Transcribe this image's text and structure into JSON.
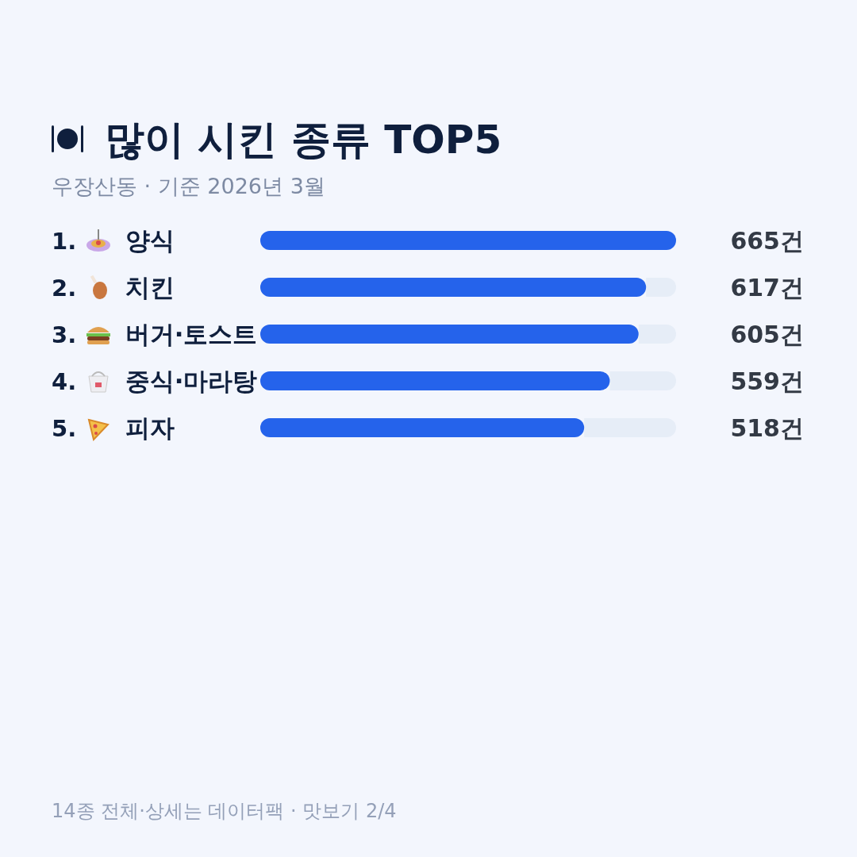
{
  "chart_data": {
    "type": "bar",
    "orientation": "horizontal",
    "title": "많이 시킨 종류 TOP5",
    "subtitle": "우장산동 · 기준 2026년 3월",
    "categories": [
      "1. 양식",
      "2. 치킨",
      "3. 버거·토스트",
      "4. 중식·마라탕",
      "5. 피자"
    ],
    "values": [
      665,
      617,
      605,
      559,
      518
    ],
    "value_labels": [
      "665건",
      "617건",
      "605건",
      "559건",
      "518건"
    ],
    "color": "#2563eb",
    "xlim": [
      0,
      665
    ],
    "annotations": [
      "14종 전체·상세는 데이터팩 · 맛보기 2/4"
    ]
  }
}
